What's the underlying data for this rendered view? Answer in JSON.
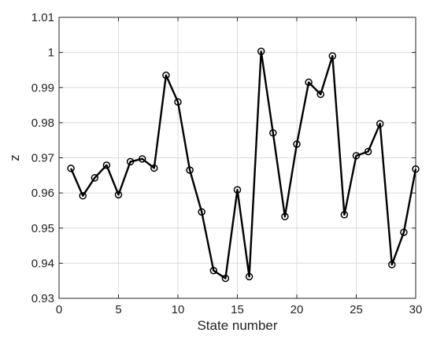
{
  "chart_data": {
    "type": "line",
    "xlabel": "State number",
    "ylabel": "z",
    "xlim": [
      0,
      30
    ],
    "ylim": [
      0.93,
      1.01
    ],
    "xticks": [
      0,
      5,
      10,
      15,
      20,
      25,
      30
    ],
    "yticks": [
      0.93,
      0.94,
      0.95,
      0.96,
      0.97,
      0.98,
      0.99,
      1,
      1.01
    ],
    "xtick_labels": [
      "0",
      "5",
      "10",
      "15",
      "20",
      "25",
      "30"
    ],
    "ytick_labels": [
      "0.93",
      "0.94",
      "0.95",
      "0.96",
      "0.97",
      "0.98",
      "0.99",
      "1",
      "1.01"
    ],
    "grid": true,
    "line_color": "#000000",
    "marker": "circle",
    "x": [
      1,
      2,
      3,
      4,
      5,
      6,
      7,
      8,
      9,
      10,
      11,
      12,
      13,
      14,
      15,
      16,
      17,
      18,
      19,
      20,
      21,
      22,
      23,
      24,
      25,
      26,
      27,
      28,
      29,
      30
    ],
    "values": [
      0.967,
      0.9592,
      0.9643,
      0.9679,
      0.9595,
      0.9689,
      0.9697,
      0.9671,
      0.9935,
      0.9859,
      0.9665,
      0.9546,
      0.9379,
      0.9357,
      0.9609,
      0.9362,
      1.0003,
      0.9771,
      0.9533,
      0.9739,
      0.9915,
      0.9881,
      0.999,
      0.9538,
      0.9706,
      0.9718,
      0.9797,
      0.9396,
      0.9488,
      0.9668
    ]
  }
}
